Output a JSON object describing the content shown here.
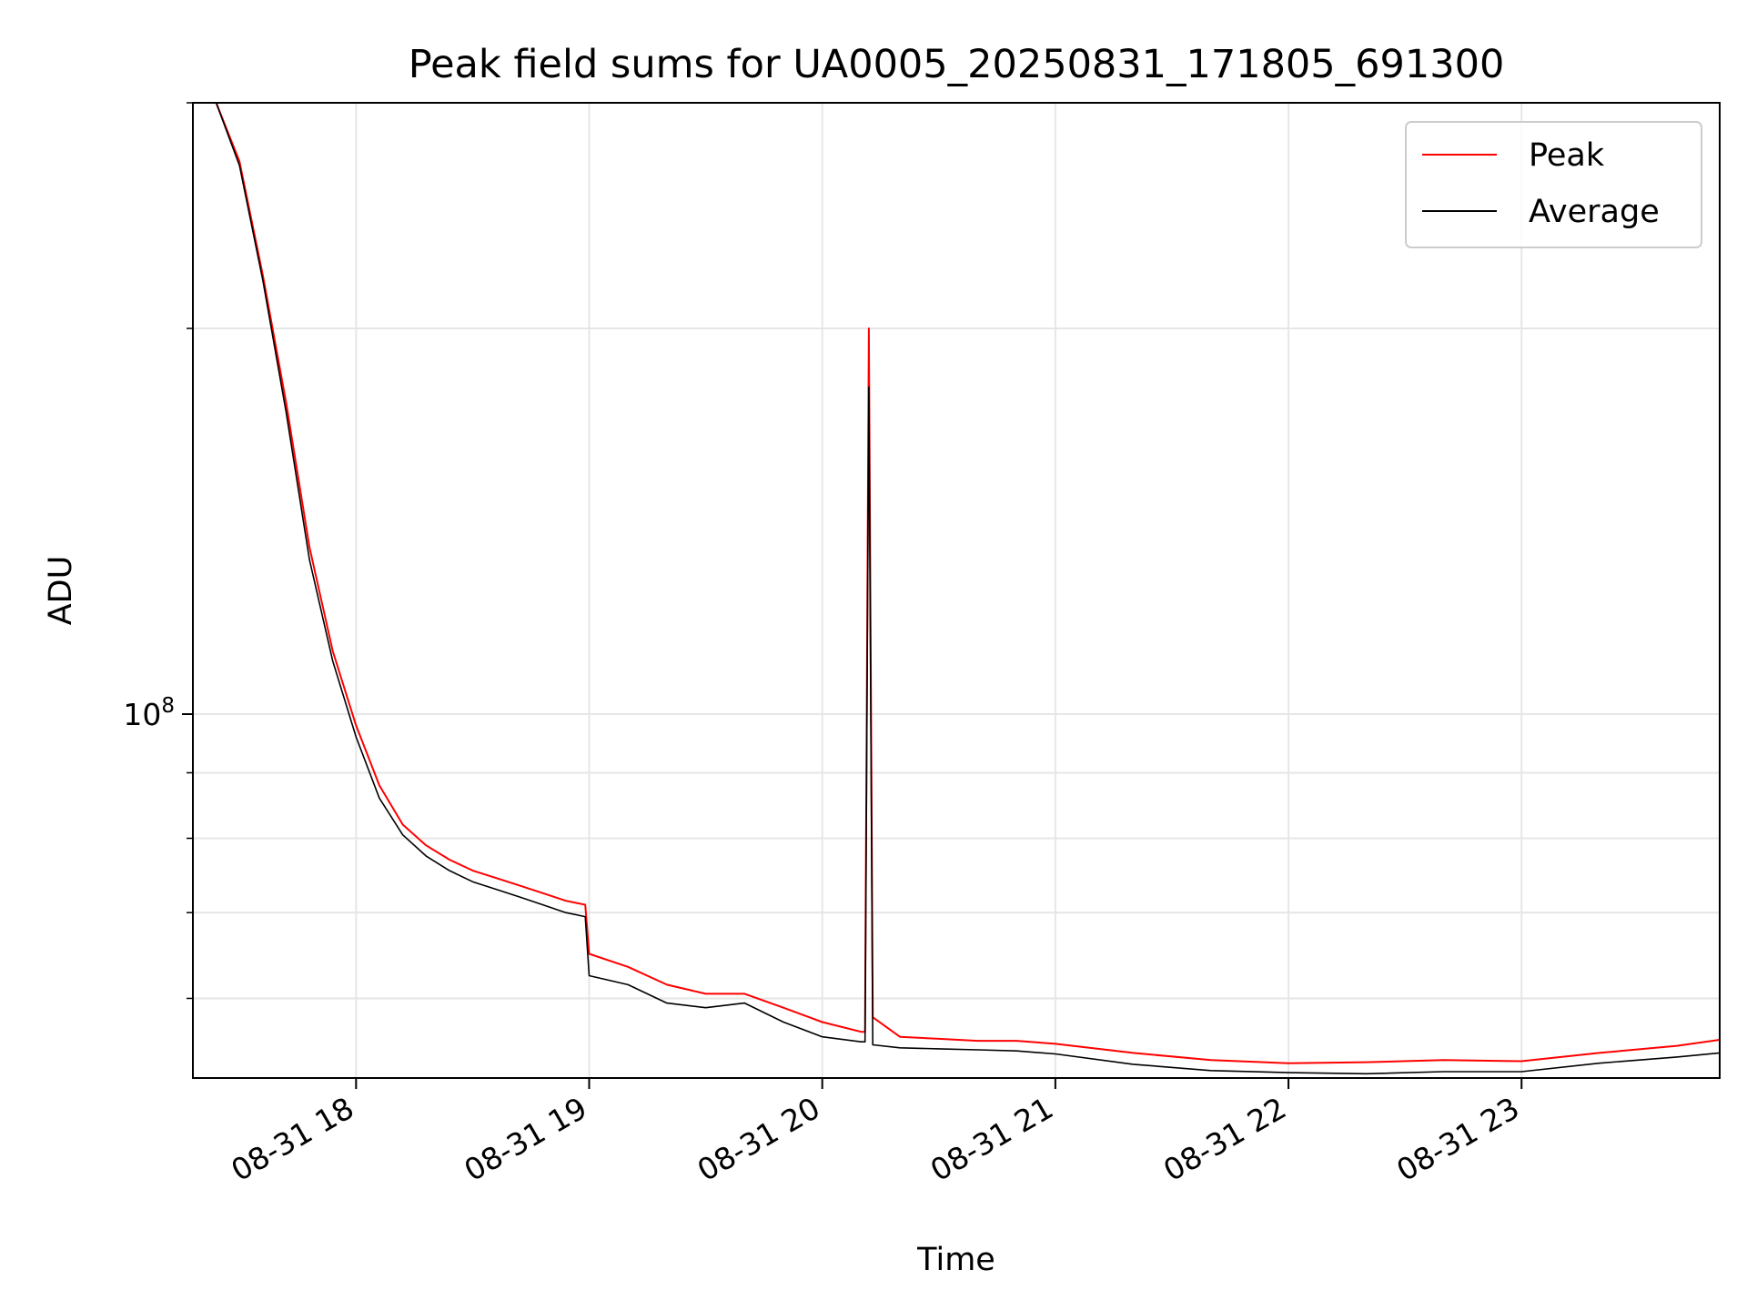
{
  "chart_data": {
    "type": "line",
    "title": "Peak field sums for UA0005_20250831_171805_691300",
    "xlabel": "Time",
    "ylabel": "ADU",
    "y_scale": "log",
    "ylim": [
      52000000,
      300000000
    ],
    "y_major_tick": {
      "value": 100000000,
      "label_base": "10",
      "label_exp": "8"
    },
    "y_minor_ticks": [
      60000000,
      70000000,
      80000000,
      90000000,
      200000000,
      300000000
    ],
    "xlim": [
      "2025-08-31 17:18",
      "2025-08-31 23:51"
    ],
    "x_ticks": [
      {
        "t": "2025-08-31 18:00",
        "label": "08-31 18"
      },
      {
        "t": "2025-08-31 19:00",
        "label": "08-31 19"
      },
      {
        "t": "2025-08-31 20:00",
        "label": "08-31 20"
      },
      {
        "t": "2025-08-31 21:00",
        "label": "08-31 21"
      },
      {
        "t": "2025-08-31 22:00",
        "label": "08-31 22"
      },
      {
        "t": "2025-08-31 23:00",
        "label": "08-31 23"
      }
    ],
    "grid": true,
    "legend_position": "top-right",
    "series": [
      {
        "name": "Peak",
        "color": "#ff0000",
        "x": [
          "2025-08-31 17:24",
          "2025-08-31 17:30",
          "2025-08-31 17:36",
          "2025-08-31 17:42",
          "2025-08-31 17:48",
          "2025-08-31 17:54",
          "2025-08-31 18:00",
          "2025-08-31 18:06",
          "2025-08-31 18:12",
          "2025-08-31 18:18",
          "2025-08-31 18:24",
          "2025-08-31 18:30",
          "2025-08-31 18:36",
          "2025-08-31 18:42",
          "2025-08-31 18:48",
          "2025-08-31 18:54",
          "2025-08-31 18:59",
          "2025-08-31 19:00",
          "2025-08-31 19:10",
          "2025-08-31 19:20",
          "2025-08-31 19:30",
          "2025-08-31 19:40",
          "2025-08-31 19:50",
          "2025-08-31 20:00",
          "2025-08-31 20:10",
          "2025-08-31 20:11",
          "2025-08-31 20:12",
          "2025-08-31 20:13",
          "2025-08-31 20:20",
          "2025-08-31 20:30",
          "2025-08-31 20:40",
          "2025-08-31 20:50",
          "2025-08-31 21:00",
          "2025-08-31 21:20",
          "2025-08-31 21:40",
          "2025-08-31 22:00",
          "2025-08-31 22:20",
          "2025-08-31 22:40",
          "2025-08-31 23:00",
          "2025-08-31 23:20",
          "2025-08-31 23:40",
          "2025-08-31 23:51"
        ],
        "y": [
          300000000,
          270000000,
          220000000,
          175000000,
          135000000,
          112000000,
          98000000,
          88000000,
          82000000,
          79000000,
          77000000,
          75500000,
          74500000,
          73500000,
          72500000,
          71500000,
          71000000,
          65000000,
          63500000,
          61500000,
          60500000,
          60500000,
          59000000,
          57500000,
          56500000,
          56500000,
          200000000,
          58000000,
          56000000,
          55800000,
          55600000,
          55600000,
          55300000,
          54400000,
          53700000,
          53400000,
          53500000,
          53700000,
          53600000,
          54400000,
          55100000,
          55700000
        ]
      },
      {
        "name": "Average",
        "color": "#000000",
        "x": [
          "2025-08-31 17:24",
          "2025-08-31 17:30",
          "2025-08-31 17:36",
          "2025-08-31 17:42",
          "2025-08-31 17:48",
          "2025-08-31 17:54",
          "2025-08-31 18:00",
          "2025-08-31 18:06",
          "2025-08-31 18:12",
          "2025-08-31 18:18",
          "2025-08-31 18:24",
          "2025-08-31 18:30",
          "2025-08-31 18:36",
          "2025-08-31 18:42",
          "2025-08-31 18:48",
          "2025-08-31 18:54",
          "2025-08-31 18:59",
          "2025-08-31 19:00",
          "2025-08-31 19:10",
          "2025-08-31 19:20",
          "2025-08-31 19:30",
          "2025-08-31 19:40",
          "2025-08-31 19:50",
          "2025-08-31 20:00",
          "2025-08-31 20:10",
          "2025-08-31 20:11",
          "2025-08-31 20:12",
          "2025-08-31 20:13",
          "2025-08-31 20:20",
          "2025-08-31 20:30",
          "2025-08-31 20:40",
          "2025-08-31 20:50",
          "2025-08-31 21:00",
          "2025-08-31 21:20",
          "2025-08-31 21:40",
          "2025-08-31 22:00",
          "2025-08-31 22:20",
          "2025-08-31 22:40",
          "2025-08-31 23:00",
          "2025-08-31 23:20",
          "2025-08-31 23:40",
          "2025-08-31 23:51"
        ],
        "y": [
          300000000,
          268000000,
          218000000,
          172000000,
          132000000,
          110000000,
          96000000,
          86000000,
          80500000,
          77500000,
          75500000,
          74000000,
          73000000,
          72000000,
          71000000,
          70000000,
          69500000,
          62500000,
          61500000,
          59500000,
          59000000,
          59500000,
          57500000,
          56000000,
          55500000,
          55500000,
          180000000,
          55200000,
          54900000,
          54800000,
          54700000,
          54600000,
          54300000,
          53300000,
          52700000,
          52500000,
          52400000,
          52600000,
          52600000,
          53400000,
          54000000,
          54400000
        ]
      }
    ]
  }
}
